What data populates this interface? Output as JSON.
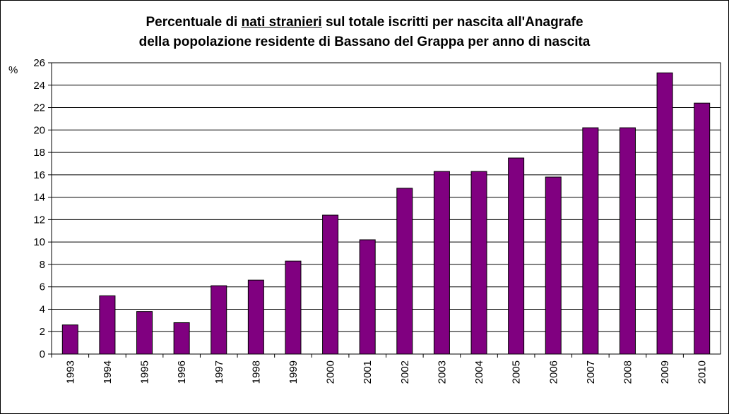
{
  "chart_data": {
    "type": "bar",
    "title_parts": [
      "Percentuale di ",
      "nati stranieri",
      " sul totale iscritti per nascita all'Anagrafe"
    ],
    "title_line2": "della popolazione residente di Bassano del Grappa per anno di nascita",
    "y_label": "%",
    "categories": [
      "1993",
      "1994",
      "1995",
      "1996",
      "1997",
      "1998",
      "1999",
      "2000",
      "2001",
      "2002",
      "2003",
      "2004",
      "2005",
      "2006",
      "2007",
      "2008",
      "2009",
      "2010"
    ],
    "values": [
      2.6,
      5.2,
      3.8,
      2.8,
      6.1,
      6.6,
      8.3,
      12.4,
      10.2,
      14.8,
      16.3,
      16.3,
      17.5,
      15.8,
      20.2,
      20.2,
      25.1,
      22.4
    ],
    "color": "#800080",
    "ylim": [
      0,
      26
    ],
    "yticks": [
      0,
      2,
      4,
      6,
      8,
      10,
      12,
      14,
      16,
      18,
      20,
      22,
      24,
      26
    ],
    "grid": true
  }
}
